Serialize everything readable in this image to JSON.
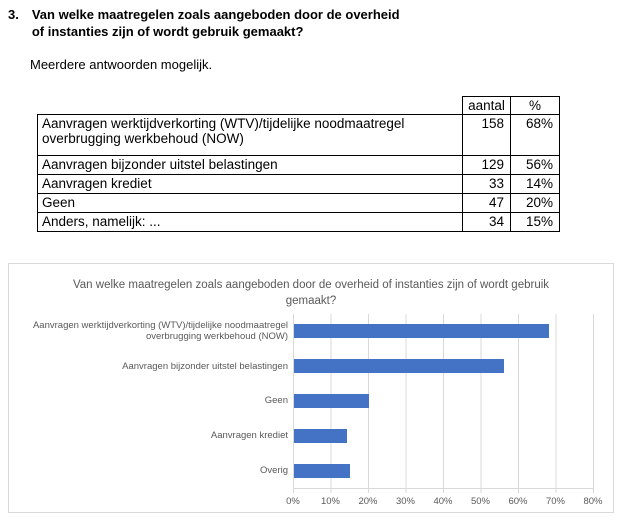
{
  "question": {
    "number": "3.",
    "title": "Van welke maatregelen zoals aangeboden door de overheid of instanties zijn of wordt gebruik gemaakt?",
    "note": "Meerdere antwoorden mogelijk."
  },
  "table": {
    "headers": [
      "aantal",
      "%"
    ],
    "rows": [
      {
        "label": "Aanvragen werktijdverkorting (WTV)/tijdelijke noodmaatregel overbrugging werkbehoud (NOW)",
        "aantal": "158",
        "pct": "68%"
      },
      {
        "label": "Aanvragen bijzonder uitstel belastingen",
        "aantal": "129",
        "pct": "56%"
      },
      {
        "label": "Aanvragen krediet",
        "aantal": "33",
        "pct": "14%"
      },
      {
        "label": "Geen",
        "aantal": "47",
        "pct": "20%"
      },
      {
        "label": "Anders, namelijk: ...",
        "aantal": "34",
        "pct": "15%"
      }
    ]
  },
  "chart_data": {
    "type": "bar",
    "orientation": "horizontal",
    "title": "Van welke maatregelen zoals aangeboden door de overheid of instanties zijn of wordt gebruik gemaakt?",
    "categories": [
      "Aanvragen werktijdverkorting (WTV)/tijdelijke noodmaatregel overbrugging werkbehoud (NOW)",
      "Aanvragen bijzonder uitstel belastingen",
      "Geen",
      "Aanvragen krediet",
      "Overig"
    ],
    "values": [
      68,
      56,
      20,
      14,
      15
    ],
    "unit": "%",
    "x_ticks": [
      "0%",
      "10%",
      "20%",
      "30%",
      "40%",
      "50%",
      "60%",
      "70%",
      "80%"
    ],
    "xlim": [
      0,
      80
    ],
    "grid": true,
    "legend": false,
    "bar_color": "#4472C4",
    "gridline_color": "#D9D9D9",
    "text_color": "#595959"
  }
}
